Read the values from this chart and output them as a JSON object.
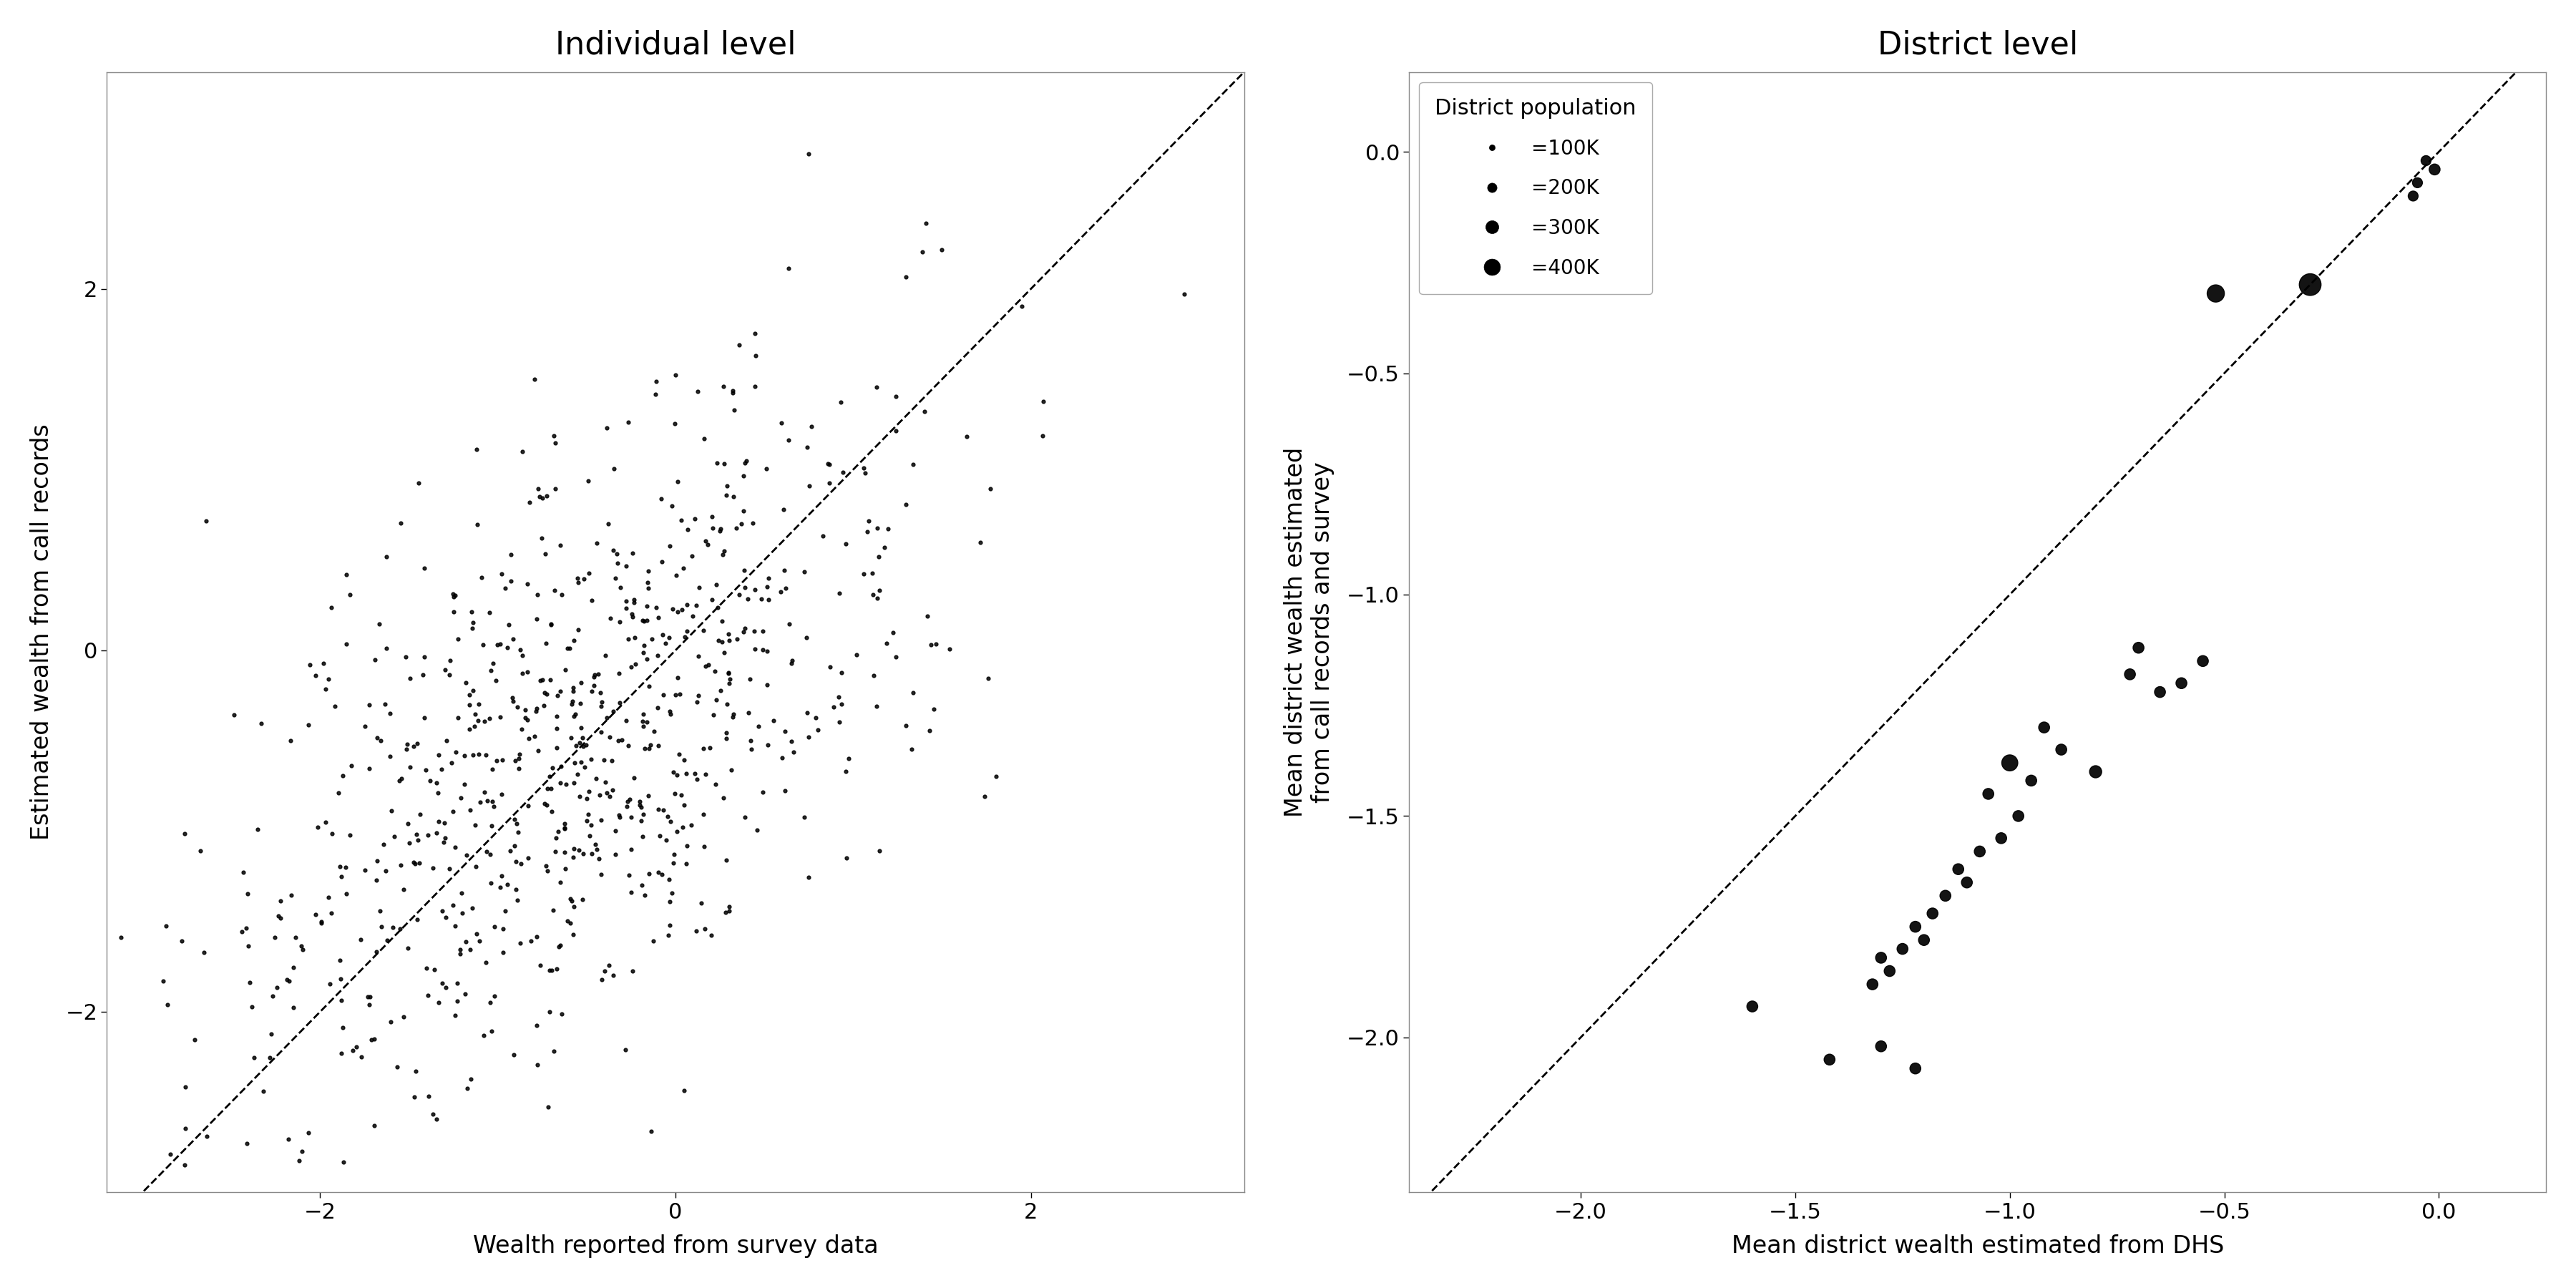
{
  "left_title": "Individual level",
  "left_xlabel": "Wealth reported from survey data",
  "left_ylabel": "Estimated wealth from call records",
  "left_xlim": [
    -3.2,
    3.2
  ],
  "left_ylim": [
    -3.0,
    3.2
  ],
  "left_xticks": [
    -2,
    0,
    2
  ],
  "left_yticks": [
    -2,
    0,
    2
  ],
  "right_title": "District level",
  "right_xlabel": "Mean district wealth estimated from DHS",
  "right_ylabel": "Mean district wealth estimated\nfrom call records and survey",
  "right_xlim": [
    -2.4,
    0.25
  ],
  "right_ylim": [
    -2.35,
    0.18
  ],
  "right_xticks": [
    -2.0,
    -1.5,
    -1.0,
    -0.5,
    0.0
  ],
  "right_yticks": [
    0.0,
    -0.5,
    -1.0,
    -1.5,
    -2.0
  ],
  "legend_title": "District population",
  "legend_entries": [
    "=100K",
    "=200K",
    "=300K",
    "=400K"
  ],
  "legend_sizes": [
    60,
    160,
    300,
    480
  ],
  "district_data": [
    [
      -0.01,
      -0.04,
      120
    ],
    [
      -0.03,
      -0.02,
      100
    ],
    [
      -0.05,
      -0.07,
      100
    ],
    [
      -0.06,
      -0.1,
      100
    ],
    [
      -0.3,
      -0.3,
      480
    ],
    [
      -0.52,
      -0.32,
      300
    ],
    [
      -0.55,
      -1.15,
      120
    ],
    [
      -0.6,
      -1.2,
      120
    ],
    [
      -0.65,
      -1.22,
      120
    ],
    [
      -0.7,
      -1.12,
      120
    ],
    [
      -0.72,
      -1.18,
      120
    ],
    [
      -0.8,
      -1.4,
      150
    ],
    [
      -0.88,
      -1.35,
      120
    ],
    [
      -0.92,
      -1.3,
      120
    ],
    [
      -0.95,
      -1.42,
      120
    ],
    [
      -0.98,
      -1.5,
      120
    ],
    [
      -1.0,
      -1.38,
      260
    ],
    [
      -1.02,
      -1.55,
      120
    ],
    [
      -1.05,
      -1.45,
      120
    ],
    [
      -1.07,
      -1.58,
      120
    ],
    [
      -1.1,
      -1.65,
      120
    ],
    [
      -1.12,
      -1.62,
      120
    ],
    [
      -1.15,
      -1.68,
      120
    ],
    [
      -1.18,
      -1.72,
      120
    ],
    [
      -1.2,
      -1.78,
      120
    ],
    [
      -1.22,
      -1.75,
      120
    ],
    [
      -1.25,
      -1.8,
      120
    ],
    [
      -1.28,
      -1.85,
      120
    ],
    [
      -1.3,
      -1.82,
      120
    ],
    [
      -1.32,
      -1.88,
      120
    ],
    [
      -1.42,
      -2.05,
      120
    ],
    [
      -1.6,
      -1.93,
      120
    ],
    [
      -1.3,
      -2.02,
      120
    ],
    [
      -1.22,
      -2.07,
      120
    ]
  ],
  "point_color": "#000000",
  "background_color": "#ffffff",
  "title_fontsize": 32,
  "label_fontsize": 24,
  "tick_fontsize": 22,
  "legend_fontsize": 20,
  "legend_title_fontsize": 22
}
